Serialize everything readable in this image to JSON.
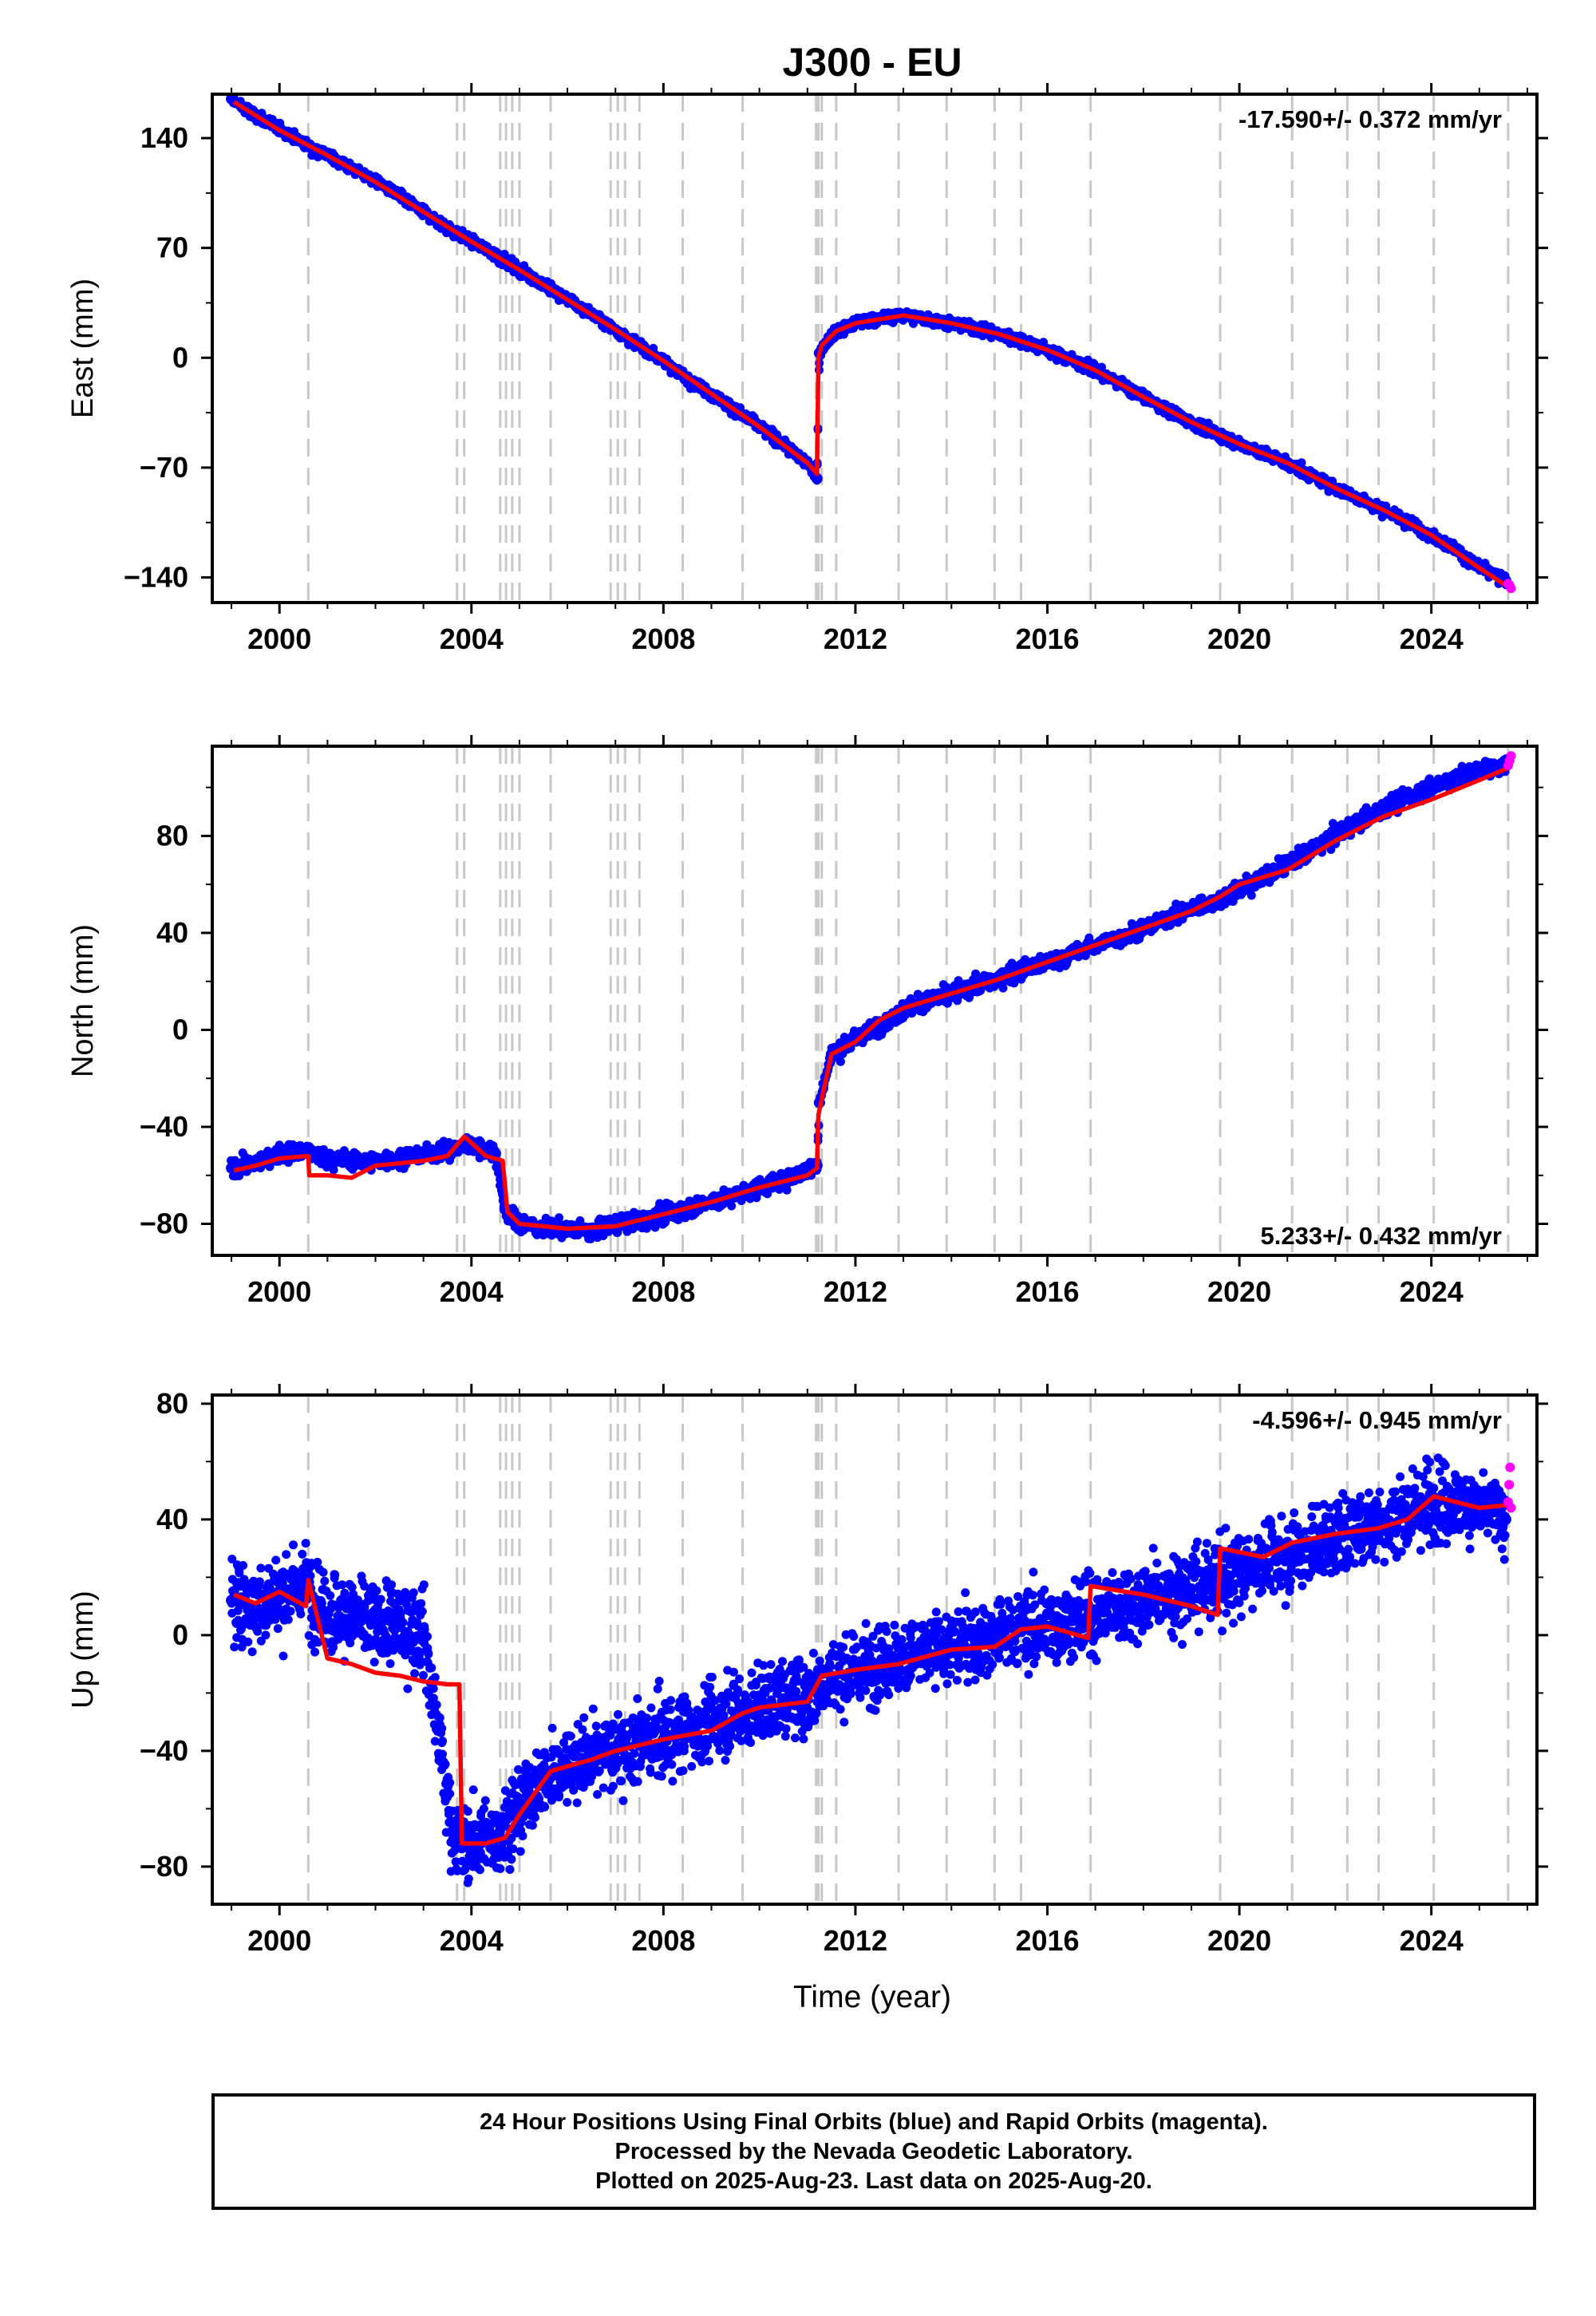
{
  "title": "J300 - EU",
  "xlabel": "Time (year)",
  "x_ticks": [
    "2000",
    "2004",
    "2008",
    "2012",
    "2016",
    "2020",
    "2024"
  ],
  "colors": {
    "final": "#0000ff",
    "rapid": "#ff00ff",
    "model": "#ff0000",
    "steps": "#c8c8c8"
  },
  "footer": {
    "line1": "24 Hour Positions Using Final Orbits (blue) and Rapid Orbits (magenta).",
    "line2": "Processed by the Nevada Geodetic Laboratory.",
    "line3": "Plotted on 2025-Aug-23. Last data on 2025-Aug-20."
  },
  "chart_data": [
    {
      "type": "scatter",
      "ylabel": "East (mm)",
      "xlim": [
        1998.6,
        2026.2
      ],
      "ylim": [
        -156,
        168
      ],
      "y_ticks": [
        "140",
        "70",
        "0",
        "−70",
        "−140"
      ],
      "y_tick_values": [
        140,
        70,
        0,
        -70,
        -140
      ],
      "rate": "-17.590+/- 0.372 mm/yr",
      "rate_position": "top-right",
      "grid": false,
      "step_epochs": [
        2000.6,
        2003.7,
        2003.85,
        2004.6,
        2004.72,
        2004.85,
        2005.0,
        2005.65,
        2006.9,
        2007.05,
        2007.2,
        2007.5,
        2008.4,
        2009.65,
        2011.18,
        2011.23,
        2011.3,
        2011.6,
        2012.9,
        2013.9,
        2014.9,
        2015.45,
        2016.9,
        2019.6,
        2021.1,
        2022.25,
        2022.9,
        2024.05,
        2025.6
      ],
      "model_line": {
        "name": "model",
        "x": [
          1999.05,
          2000.0,
          2001.0,
          2002.0,
          2003.0,
          2004.0,
          2005.0,
          2006.0,
          2007.0,
          2008.0,
          2009.0,
          2010.0,
          2011.0,
          2011.2,
          2011.23,
          2011.3,
          2011.6,
          2012.0,
          2013.0,
          2014.0,
          2015.0,
          2016.0,
          2017.0,
          2018.0,
          2019.0,
          2020.0,
          2021.0,
          2022.0,
          2023.0,
          2024.0,
          2025.0,
          2025.6
        ],
        "y": [
          163,
          145,
          129,
          112,
          93,
          74,
          56,
          37,
          18,
          -2,
          -23,
          -44,
          -67,
          -74,
          0,
          8,
          17,
          22,
          27,
          22,
          15,
          5,
          -8,
          -25,
          -41,
          -55,
          -67,
          -83,
          -97,
          -113,
          -134,
          -146
        ]
      },
      "final_orbits": {
        "name": "final orbits",
        "x": [
          1999.0,
          1999.5,
          2000.0,
          2000.5,
          2001.0,
          2001.5,
          2002.0,
          2002.5,
          2003.0,
          2003.5,
          2004.0,
          2004.5,
          2005.0,
          2005.5,
          2006.0,
          2006.5,
          2007.0,
          2007.5,
          2008.0,
          2008.5,
          2009.0,
          2009.5,
          2010.0,
          2010.5,
          2011.0,
          2011.2,
          2011.25,
          2011.5,
          2012.0,
          2012.5,
          2013.0,
          2013.5,
          2014.0,
          2014.5,
          2015.0,
          2015.5,
          2016.0,
          2016.5,
          2017.0,
          2017.5,
          2018.0,
          2018.5,
          2019.0,
          2019.5,
          2020.0,
          2020.5,
          2021.0,
          2021.5,
          2022.0,
          2022.5,
          2023.0,
          2023.5,
          2024.0,
          2024.5,
          2025.0,
          2025.55
        ],
        "y": [
          165,
          154,
          146,
          137,
          129,
          121,
          113,
          103,
          93,
          83,
          74,
          66,
          56,
          47,
          37,
          28,
          18,
          8,
          -2,
          -13,
          -23,
          -33,
          -44,
          -55,
          -67,
          -77,
          3,
          14,
          22,
          25,
          27,
          25,
          22,
          19,
          15,
          11,
          5,
          -1,
          -8,
          -16,
          -25,
          -33,
          -41,
          -48,
          -55,
          -61,
          -67,
          -75,
          -83,
          -90,
          -97,
          -104,
          -113,
          -122,
          -134,
          -142
        ]
      },
      "rapid_orbits": {
        "name": "rapid orbits",
        "x": [
          2025.6,
          2025.63,
          2025.66
        ],
        "y": [
          -144,
          -145,
          -147
        ]
      }
    },
    {
      "type": "scatter",
      "ylabel": "North (mm)",
      "xlim": [
        1998.6,
        2026.2
      ],
      "ylim": [
        -93,
        117
      ],
      "y_ticks": [
        "80",
        "40",
        "0",
        "−40",
        "−80"
      ],
      "y_tick_values": [
        80,
        40,
        0,
        -40,
        -80
      ],
      "rate": "5.233+/- 0.432 mm/yr",
      "rate_position": "bottom-right",
      "grid": false,
      "step_epochs": [
        2000.6,
        2003.7,
        2003.85,
        2004.6,
        2004.72,
        2004.85,
        2005.0,
        2005.65,
        2006.9,
        2007.05,
        2007.2,
        2007.5,
        2008.4,
        2009.65,
        2011.18,
        2011.23,
        2011.3,
        2011.6,
        2012.9,
        2013.9,
        2014.9,
        2015.45,
        2016.9,
        2019.6,
        2021.1,
        2022.25,
        2022.9,
        2024.05,
        2025.6
      ],
      "model_line": {
        "name": "model",
        "x": [
          1999.05,
          1999.5,
          2000.0,
          2000.6,
          2000.62,
          2001.0,
          2001.5,
          2002.0,
          2002.5,
          2003.0,
          2003.5,
          2003.85,
          2004.3,
          2004.65,
          2004.75,
          2005.0,
          2006.0,
          2007.0,
          2008.0,
          2009.0,
          2010.0,
          2011.0,
          2011.2,
          2011.23,
          2011.5,
          2012.0,
          2012.5,
          2013.0,
          2014.0,
          2015.0,
          2016.0,
          2017.0,
          2018.0,
          2019.0,
          2019.6,
          2020.0,
          2021.0,
          2022.0,
          2023.0,
          2024.0,
          2025.0,
          2025.6
        ],
        "y": [
          -58,
          -56,
          -53,
          -52,
          -60,
          -60,
          -61,
          -56,
          -55,
          -54,
          -52,
          -44,
          -52,
          -54,
          -75,
          -80,
          -82,
          -81,
          -76,
          -71,
          -65,
          -60,
          -57,
          -35,
          -10,
          -5,
          4,
          9,
          15,
          21,
          28,
          35,
          42,
          49,
          55,
          60,
          66,
          78,
          88,
          95,
          103,
          108
        ]
      },
      "final_orbits": {
        "name": "final orbits",
        "x": [
          1999.0,
          1999.5,
          2000.0,
          2000.5,
          2001.0,
          2001.5,
          2002.0,
          2002.5,
          2003.0,
          2003.5,
          2004.0,
          2004.5,
          2004.7,
          2005.0,
          2005.5,
          2006.0,
          2006.5,
          2007.0,
          2007.5,
          2008.0,
          2008.5,
          2009.0,
          2009.5,
          2010.0,
          2010.5,
          2011.0,
          2011.2,
          2011.25,
          2011.5,
          2012.0,
          2012.5,
          2013.0,
          2013.5,
          2014.0,
          2014.5,
          2015.0,
          2015.5,
          2016.0,
          2016.5,
          2017.0,
          2017.5,
          2018.0,
          2018.5,
          2019.0,
          2019.5,
          2020.0,
          2020.5,
          2021.0,
          2021.5,
          2022.0,
          2022.5,
          2023.0,
          2023.5,
          2024.0,
          2024.5,
          2025.0,
          2025.55
        ],
        "y": [
          -57,
          -55,
          -51,
          -50,
          -53,
          -54,
          -54,
          -53,
          -51,
          -50,
          -47,
          -51,
          -74,
          -80,
          -82,
          -82,
          -83,
          -80,
          -79,
          -76,
          -74,
          -71,
          -68,
          -65,
          -62,
          -58,
          -56,
          -30,
          -10,
          -4,
          2,
          8,
          12,
          15,
          18,
          21,
          25,
          28,
          31,
          35,
          38,
          42,
          46,
          50,
          53,
          58,
          63,
          68,
          74,
          80,
          86,
          91,
          96,
          100,
          104,
          107,
          109
        ]
      },
      "rapid_orbits": {
        "name": "rapid orbits",
        "x": [
          2025.6,
          2025.63,
          2025.66
        ],
        "y": [
          109,
          111,
          113
        ]
      }
    },
    {
      "type": "scatter",
      "ylabel": "Up (mm)",
      "xlim": [
        1998.6,
        2026.2
      ],
      "ylim": [
        -93,
        83
      ],
      "y_ticks": [
        "80",
        "40",
        "0",
        "−40",
        "−80"
      ],
      "y_tick_values": [
        80,
        40,
        0,
        -40,
        -80
      ],
      "rate": "-4.596+/- 0.945 mm/yr",
      "rate_position": "top-right",
      "grid": false,
      "step_epochs": [
        2000.6,
        2003.7,
        2003.85,
        2004.6,
        2004.72,
        2004.85,
        2005.0,
        2005.65,
        2006.9,
        2007.05,
        2007.2,
        2007.5,
        2008.4,
        2009.65,
        2011.18,
        2011.23,
        2011.3,
        2011.6,
        2012.9,
        2013.9,
        2014.9,
        2015.45,
        2016.9,
        2019.6,
        2021.1,
        2022.25,
        2022.9,
        2024.05,
        2025.6
      ],
      "model_line": {
        "name": "model",
        "x": [
          1999.05,
          1999.5,
          2000.0,
          2000.55,
          2000.6,
          2001.0,
          2001.5,
          2002.0,
          2002.5,
          2003.0,
          2003.5,
          2003.75,
          2003.8,
          2004.3,
          2004.7,
          2005.0,
          2005.65,
          2006.5,
          2007.0,
          2008.0,
          2009.0,
          2009.65,
          2010.0,
          2011.0,
          2011.3,
          2012.0,
          2012.9,
          2014.0,
          2014.9,
          2015.45,
          2016.0,
          2016.85,
          2016.9,
          2018.0,
          2019.0,
          2019.55,
          2019.6,
          2020.5,
          2021.1,
          2022.0,
          2022.9,
          2023.5,
          2024.05,
          2025.0,
          2025.6
        ],
        "y": [
          14,
          11,
          15,
          10,
          19,
          -8,
          -10,
          -13,
          -14,
          -16,
          -17,
          -17,
          -72,
          -72,
          -70,
          -62,
          -47,
          -43,
          -40,
          -36,
          -33,
          -27,
          -25,
          -23,
          -14,
          -12,
          -10,
          -5,
          -4,
          2,
          3,
          -1,
          17,
          14,
          10,
          7,
          30,
          27,
          32,
          35,
          37,
          40,
          48,
          44,
          45
        ]
      },
      "final_orbits": {
        "name": "final orbits",
        "x": [
          1999.0,
          1999.5,
          2000.0,
          2000.5,
          2001.0,
          2001.5,
          2002.0,
          2002.5,
          2003.0,
          2003.6,
          2004.0,
          2004.5,
          2005.0,
          2005.5,
          2006.0,
          2006.5,
          2007.0,
          2007.5,
          2008.0,
          2008.5,
          2009.0,
          2009.5,
          2010.0,
          2010.5,
          2011.0,
          2011.5,
          2012.0,
          2012.5,
          2013.0,
          2013.5,
          2014.0,
          2014.5,
          2015.0,
          2015.5,
          2016.0,
          2016.5,
          2017.0,
          2017.5,
          2018.0,
          2018.5,
          2019.0,
          2019.5,
          2020.0,
          2020.5,
          2021.0,
          2021.5,
          2022.0,
          2022.5,
          2023.0,
          2023.5,
          2024.0,
          2024.5,
          2025.0,
          2025.55
        ],
        "y": [
          12,
          10,
          14,
          18,
          8,
          6,
          4,
          3,
          2,
          -68,
          -72,
          -70,
          -60,
          -50,
          -45,
          -42,
          -40,
          -38,
          -36,
          -33,
          -30,
          -27,
          -25,
          -22,
          -20,
          -15,
          -12,
          -10,
          -8,
          -6,
          -4,
          -2,
          0,
          2,
          3,
          5,
          8,
          10,
          12,
          14,
          16,
          18,
          22,
          25,
          28,
          31,
          34,
          37,
          40,
          43,
          45,
          46,
          44,
          40
        ]
      },
      "rapid_orbits": {
        "name": "rapid orbits",
        "x": [
          2025.6,
          2025.62,
          2025.64,
          2025.66
        ],
        "y": [
          46,
          52,
          58,
          44
        ]
      }
    }
  ]
}
